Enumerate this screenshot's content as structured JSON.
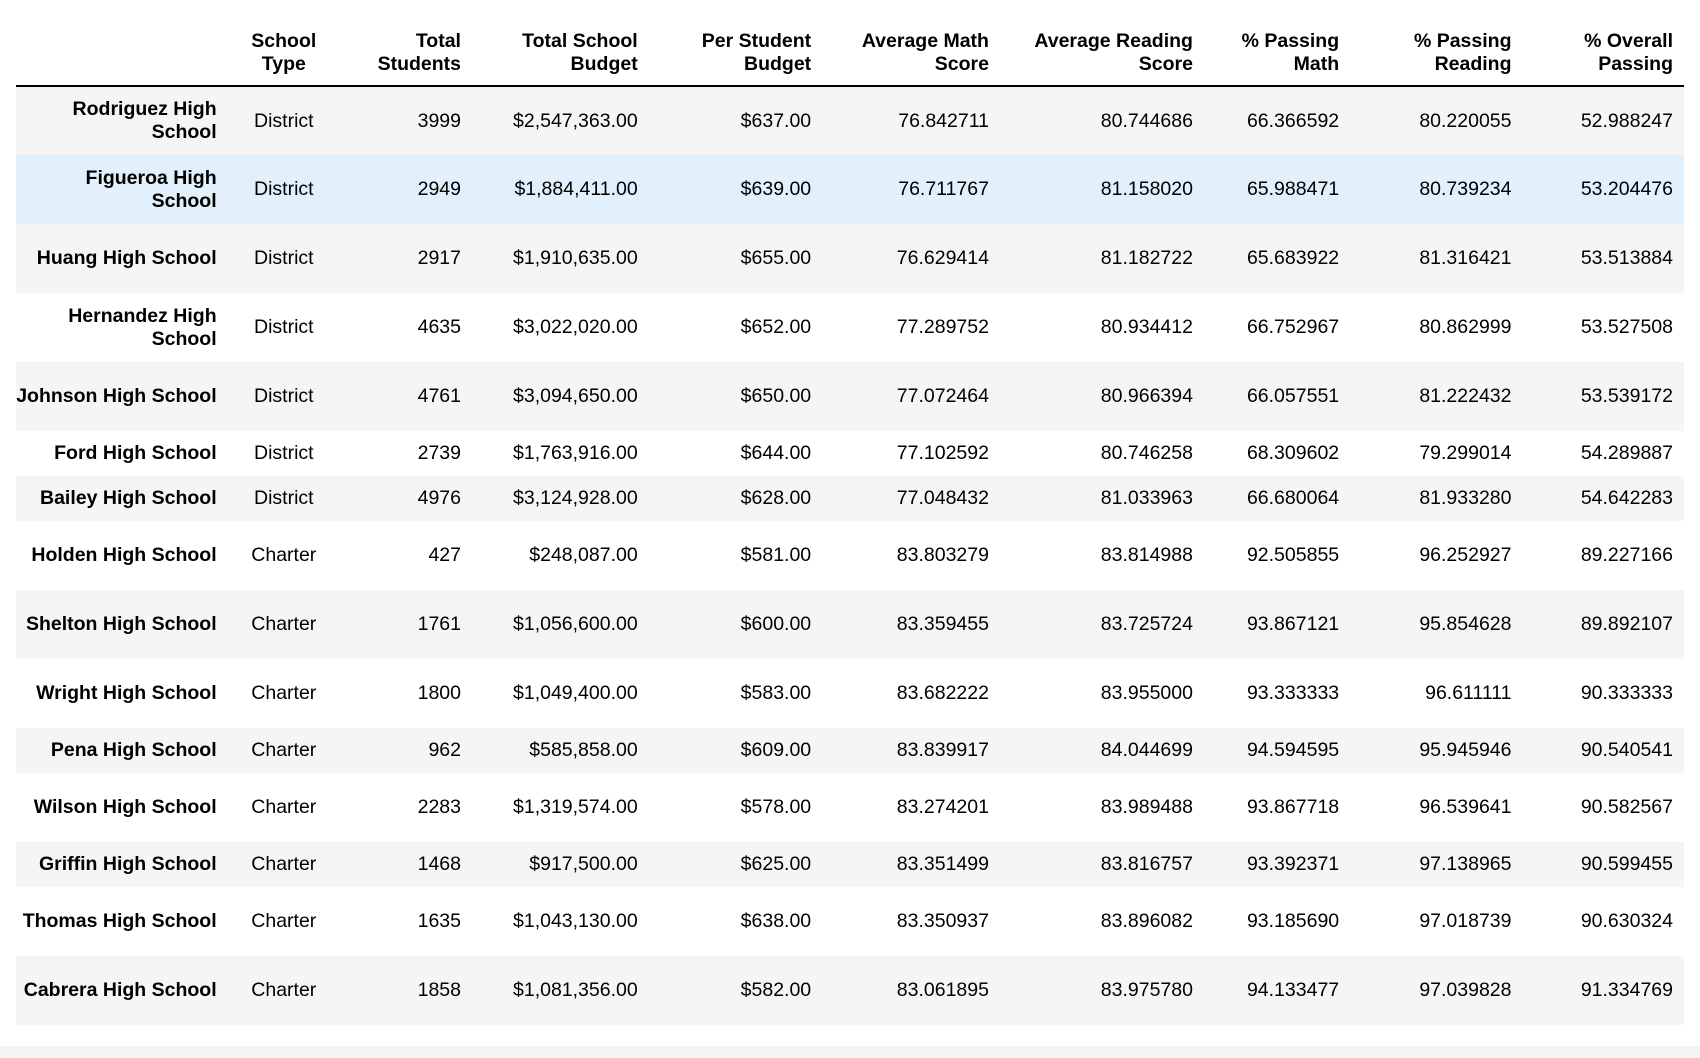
{
  "columns": [
    "School Type",
    "Total Students",
    "Total School Budget",
    "Per Student Budget",
    "Average Math Score",
    "Average Reading Score",
    "% Passing Math",
    "% Passing Reading",
    "% Overall Passing"
  ],
  "rows": [
    {
      "name": "Rodriguez High School",
      "cells": [
        "District",
        "3999",
        "$2,547,363.00",
        "$637.00",
        "76.842711",
        "80.744686",
        "66.366592",
        "80.220055",
        "52.988247"
      ]
    },
    {
      "name": "Figueroa High School",
      "cells": [
        "District",
        "2949",
        "$1,884,411.00",
        "$639.00",
        "76.711767",
        "81.158020",
        "65.988471",
        "80.739234",
        "53.204476"
      ]
    },
    {
      "name": "Huang High School",
      "cells": [
        "District",
        "2917",
        "$1,910,635.00",
        "$655.00",
        "76.629414",
        "81.182722",
        "65.683922",
        "81.316421",
        "53.513884"
      ]
    },
    {
      "name": "Hernandez High School",
      "cells": [
        "District",
        "4635",
        "$3,022,020.00",
        "$652.00",
        "77.289752",
        "80.934412",
        "66.752967",
        "80.862999",
        "53.527508"
      ]
    },
    {
      "name": "Johnson High School",
      "cells": [
        "District",
        "4761",
        "$3,094,650.00",
        "$650.00",
        "77.072464",
        "80.966394",
        "66.057551",
        "81.222432",
        "53.539172"
      ]
    },
    {
      "name": "Ford High School",
      "cells": [
        "District",
        "2739",
        "$1,763,916.00",
        "$644.00",
        "77.102592",
        "80.746258",
        "68.309602",
        "79.299014",
        "54.289887"
      ]
    },
    {
      "name": "Bailey High School",
      "cells": [
        "District",
        "4976",
        "$3,124,928.00",
        "$628.00",
        "77.048432",
        "81.033963",
        "66.680064",
        "81.933280",
        "54.642283"
      ]
    },
    {
      "name": "Holden High School",
      "cells": [
        "Charter",
        "427",
        "$248,087.00",
        "$581.00",
        "83.803279",
        "83.814988",
        "92.505855",
        "96.252927",
        "89.227166"
      ]
    },
    {
      "name": "Shelton High School",
      "cells": [
        "Charter",
        "1761",
        "$1,056,600.00",
        "$600.00",
        "83.359455",
        "83.725724",
        "93.867121",
        "95.854628",
        "89.892107"
      ]
    },
    {
      "name": "Wright High School",
      "cells": [
        "Charter",
        "1800",
        "$1,049,400.00",
        "$583.00",
        "83.682222",
        "83.955000",
        "93.333333",
        "96.611111",
        "90.333333"
      ]
    },
    {
      "name": "Pena High School",
      "cells": [
        "Charter",
        "962",
        "$585,858.00",
        "$609.00",
        "83.839917",
        "84.044699",
        "94.594595",
        "95.945946",
        "90.540541"
      ]
    },
    {
      "name": "Wilson High School",
      "cells": [
        "Charter",
        "2283",
        "$1,319,574.00",
        "$578.00",
        "83.274201",
        "83.989488",
        "93.867718",
        "96.539641",
        "90.582567"
      ]
    },
    {
      "name": "Griffin High School",
      "cells": [
        "Charter",
        "1468",
        "$917,500.00",
        "$625.00",
        "83.351499",
        "83.816757",
        "93.392371",
        "97.138965",
        "90.599455"
      ]
    },
    {
      "name": "Thomas High School",
      "cells": [
        "Charter",
        "1635",
        "$1,043,130.00",
        "$638.00",
        "83.350937",
        "83.896082",
        "93.185690",
        "97.018739",
        "90.630324"
      ]
    },
    {
      "name": "Cabrera High School",
      "cells": [
        "Charter",
        "1858",
        "$1,081,356.00",
        "$582.00",
        "83.061895",
        "83.975780",
        "94.133477",
        "97.039828",
        "91.334769"
      ]
    }
  ],
  "highlighted_row": "Figueroa High School",
  "colors": {
    "row_stripe": "#f5f5f5",
    "row_hover": "#e1f0fb",
    "header_rule": "#000000"
  }
}
